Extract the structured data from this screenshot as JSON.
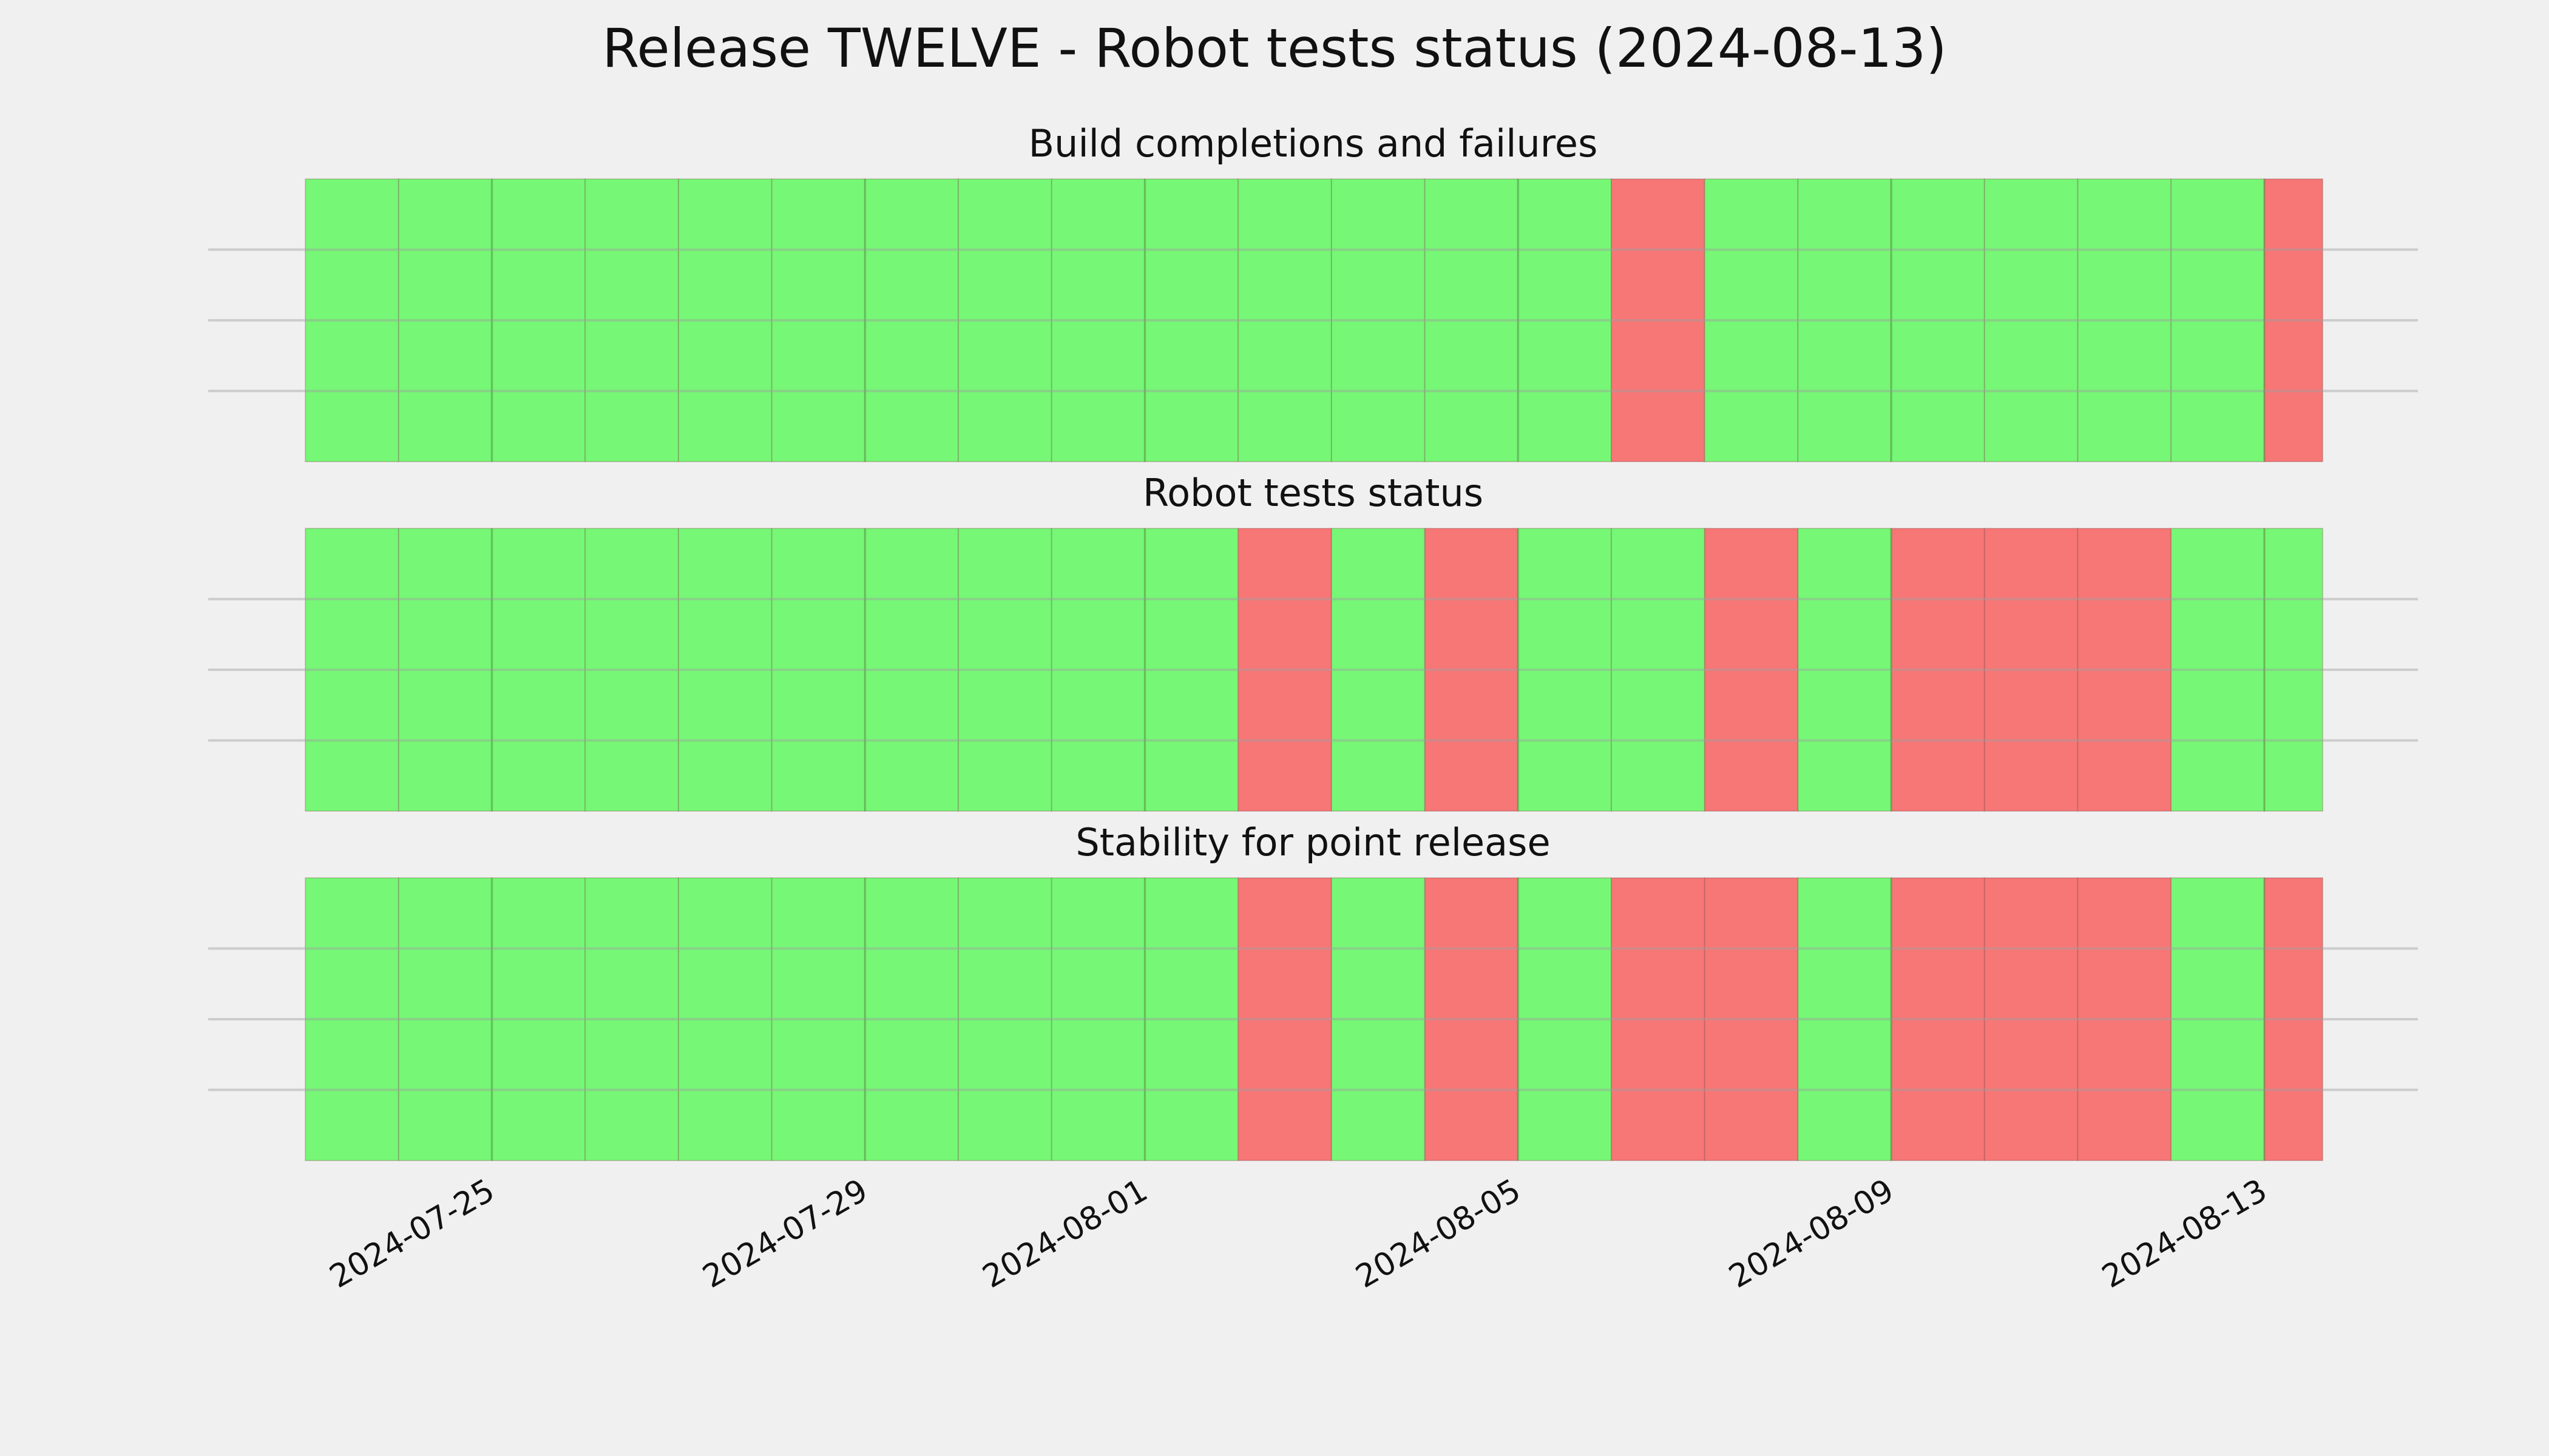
{
  "title": "Release TWELVE - Robot tests status (2024-08-13)",
  "chart_data": [
    {
      "type": "timeline",
      "title": "Build completions and failures",
      "x": [
        "2024-07-23",
        "2024-07-24",
        "2024-07-25",
        "2024-07-26",
        "2024-07-27",
        "2024-07-28",
        "2024-07-29",
        "2024-07-30",
        "2024-07-31",
        "2024-08-01",
        "2024-08-02",
        "2024-08-03",
        "2024-08-04",
        "2024-08-05",
        "2024-08-06",
        "2024-08-07",
        "2024-08-08",
        "2024-08-09",
        "2024-08-10",
        "2024-08-11",
        "2024-08-12",
        "2024-08-13"
      ],
      "values": [
        1,
        1,
        1,
        1,
        1,
        1,
        1,
        1,
        1,
        1,
        1,
        1,
        1,
        1,
        0,
        1,
        1,
        1,
        1,
        1,
        1,
        0
      ],
      "end": "2024-08-13T15:00",
      "colors": [
        "#f77676",
        "#76f776"
      ],
      "xlim": [
        "2024-07-21T23:00",
        "2024-08-14T15:30"
      ],
      "ylim": [
        0,
        1
      ],
      "yticks": [
        0.25,
        0.5,
        0.75
      ],
      "grid": true
    },
    {
      "type": "timeline",
      "title": "Robot tests status",
      "x": [
        "2024-07-23",
        "2024-07-24",
        "2024-07-25",
        "2024-07-26",
        "2024-07-27",
        "2024-07-28",
        "2024-07-29",
        "2024-07-30",
        "2024-07-31",
        "2024-08-01",
        "2024-08-02",
        "2024-08-03",
        "2024-08-04",
        "2024-08-05",
        "2024-08-06",
        "2024-08-07",
        "2024-08-08",
        "2024-08-09",
        "2024-08-10",
        "2024-08-11",
        "2024-08-12",
        "2024-08-13"
      ],
      "values": [
        1,
        1,
        1,
        1,
        1,
        1,
        1,
        1,
        1,
        1,
        0,
        1,
        0,
        1,
        1,
        0,
        1,
        0,
        0,
        0,
        1,
        1
      ],
      "end": "2024-08-13T15:00",
      "colors": [
        "#f77676",
        "#76f776"
      ],
      "xlim": [
        "2024-07-21T23:00",
        "2024-08-14T15:30"
      ],
      "ylim": [
        0,
        1
      ],
      "yticks": [
        0.25,
        0.5,
        0.75
      ],
      "grid": true
    },
    {
      "type": "timeline",
      "title": "Stability for point release",
      "x": [
        "2024-07-23",
        "2024-07-24",
        "2024-07-25",
        "2024-07-26",
        "2024-07-27",
        "2024-07-28",
        "2024-07-29",
        "2024-07-30",
        "2024-07-31",
        "2024-08-01",
        "2024-08-02",
        "2024-08-03",
        "2024-08-04",
        "2024-08-05",
        "2024-08-06",
        "2024-08-07",
        "2024-08-08",
        "2024-08-09",
        "2024-08-10",
        "2024-08-11",
        "2024-08-12",
        "2024-08-13"
      ],
      "values": [
        1,
        1,
        1,
        1,
        1,
        1,
        1,
        1,
        1,
        1,
        0,
        1,
        0,
        1,
        0,
        0,
        1,
        0,
        0,
        0,
        1,
        0
      ],
      "end": "2024-08-13T15:00",
      "colors": [
        "#f77676",
        "#76f776"
      ],
      "xlim": [
        "2024-07-21T23:00",
        "2024-08-14T15:30"
      ],
      "ylim": [
        0,
        1
      ],
      "yticks": [
        0.25,
        0.5,
        0.75
      ],
      "grid": true,
      "xticks": [
        "2024-07-25",
        "2024-07-29",
        "2024-08-01",
        "2024-08-05",
        "2024-08-09",
        "2024-08-13"
      ]
    }
  ]
}
